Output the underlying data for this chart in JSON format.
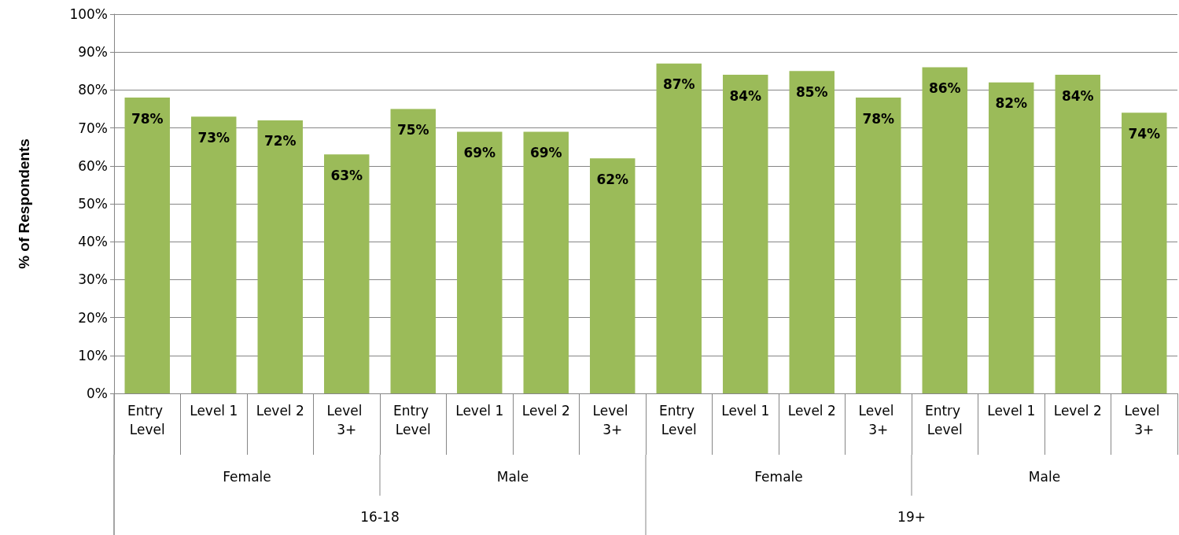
{
  "chart_data": {
    "type": "bar",
    "ylabel": "% of Respondents",
    "categories": [
      "Entry Level",
      "Level 1",
      "Level 2",
      "Level 3+",
      "Entry Level",
      "Level 1",
      "Level 2",
      "Level 3+",
      "Entry Level",
      "Level 1",
      "Level 2",
      "Level 3+",
      "Entry Level",
      "Level 1",
      "Level 2",
      "Level 3+"
    ],
    "values": [
      78,
      73,
      72,
      63,
      75,
      69,
      69,
      62,
      87,
      84,
      85,
      78,
      86,
      82,
      84,
      74
    ],
    "value_labels": [
      "78%",
      "73%",
      "72%",
      "63%",
      "75%",
      "69%",
      "69%",
      "62%",
      "87%",
      "84%",
      "85%",
      "78%",
      "86%",
      "82%",
      "84%",
      "74%"
    ],
    "color": "#9bbb59",
    "grid": "y",
    "ylim": [
      0,
      100
    ],
    "yticks": [
      {
        "value": 0,
        "label": "0%"
      },
      {
        "value": 10,
        "label": "10%"
      },
      {
        "value": 20,
        "label": "20%"
      },
      {
        "value": 30,
        "label": "30%"
      },
      {
        "value": 40,
        "label": "40%"
      },
      {
        "value": 50,
        "label": "50%"
      },
      {
        "value": 60,
        "label": "60%"
      },
      {
        "value": 70,
        "label": "70%"
      },
      {
        "value": 80,
        "label": "80%"
      },
      {
        "value": 90,
        "label": "90%"
      },
      {
        "value": 100,
        "label": "100%"
      }
    ],
    "annotations": [
      "Female",
      "Male",
      "Female",
      "Male",
      "16-18",
      "19+"
    ]
  }
}
